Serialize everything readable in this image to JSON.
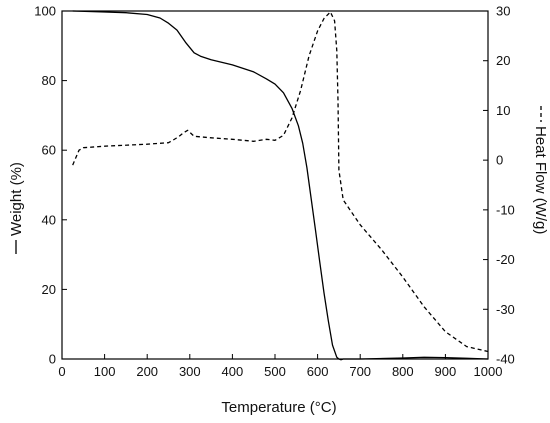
{
  "chart_data": {
    "type": "line",
    "xlabel": "Temperature (°C)",
    "ylabel_left": "Weight (%)",
    "ylabel_right": "Heat Flow (W/g)",
    "xlim": [
      0,
      1000
    ],
    "ylim_left": [
      0,
      100
    ],
    "ylim_right": [
      -40,
      30
    ],
    "x_ticks": [
      0,
      100,
      200,
      300,
      400,
      500,
      600,
      700,
      800,
      900,
      1000
    ],
    "y_left_ticks": [
      0,
      20,
      40,
      60,
      80,
      100
    ],
    "y_right_ticks": [
      -40,
      -30,
      -20,
      -10,
      0,
      10,
      20,
      30
    ],
    "grid": false,
    "series": [
      {
        "name": "Weight",
        "axis": "left",
        "line_style": "solid",
        "color": "#000000",
        "x": [
          25,
          100,
          150,
          200,
          230,
          250,
          270,
          290,
          310,
          325,
          350,
          400,
          450,
          480,
          500,
          520,
          540,
          555,
          565,
          575,
          585,
          595,
          605,
          615,
          625,
          635,
          645,
          650,
          655,
          660,
          700,
          800,
          850,
          900,
          950,
          1000
        ],
        "y": [
          100,
          99.7,
          99.5,
          99,
          98,
          96.5,
          94.5,
          91,
          88,
          87,
          86,
          84.5,
          82.5,
          80.5,
          79,
          76.5,
          72,
          67,
          62,
          55,
          46,
          37,
          28,
          19,
          11,
          4,
          0.5,
          0,
          -0.2,
          0,
          0,
          0.3,
          0.5,
          0.4,
          0.2,
          0
        ]
      },
      {
        "name": "Heat Flow",
        "axis": "right",
        "line_style": "dashed",
        "color": "#000000",
        "x": [
          25,
          40,
          50,
          100,
          200,
          250,
          260,
          275,
          285,
          295,
          310,
          350,
          400,
          450,
          480,
          500,
          520,
          540,
          560,
          580,
          600,
          615,
          630,
          640,
          645,
          648,
          650,
          660,
          700,
          750,
          800,
          850,
          900,
          950,
          1000
        ],
        "y": [
          -1,
          2,
          2.5,
          2.8,
          3.2,
          3.5,
          4,
          4.8,
          5.5,
          6,
          4.8,
          4.5,
          4.2,
          3.8,
          4.2,
          4,
          5,
          8.5,
          14,
          21,
          26,
          28.5,
          29.8,
          28,
          22,
          12,
          -2,
          -8,
          -13,
          -18,
          -23.5,
          -29.5,
          -34.5,
          -37.5,
          -38.5
        ]
      }
    ]
  }
}
